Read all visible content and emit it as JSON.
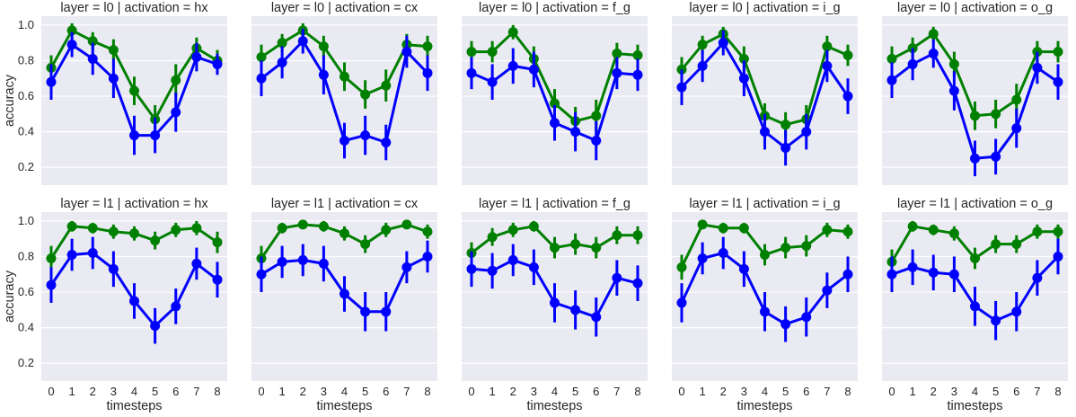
{
  "chart_data": {
    "type": "line",
    "layout": "facet-grid",
    "x_label": "timesteps",
    "y_label": "accuracy",
    "x": [
      0,
      1,
      2,
      3,
      4,
      5,
      6,
      7,
      8
    ],
    "ylim": [
      0.1,
      1.05
    ],
    "yticks": [
      0.2,
      0.4,
      0.6,
      0.8,
      1.0
    ],
    "ytick_labels": [
      "0.2",
      "0.4",
      "0.6",
      "0.8",
      "1.0"
    ],
    "grid": true,
    "colors": {
      "background": "#eaeaf2",
      "grid": "#ffffff",
      "green": "#008000",
      "blue": "#0000ff",
      "text": "#262626"
    },
    "panels": [
      {
        "title": "layer = l0 | activation = hx",
        "series": [
          {
            "color": "#008000",
            "values": [
              0.76,
              0.97,
              0.91,
              0.86,
              0.63,
              0.47,
              0.69,
              0.87,
              0.8
            ],
            "err": [
              0.07,
              0.04,
              0.05,
              0.06,
              0.08,
              0.08,
              0.09,
              0.06,
              0.06
            ]
          },
          {
            "color": "#0000ff",
            "values": [
              0.68,
              0.89,
              0.81,
              0.7,
              0.38,
              0.38,
              0.51,
              0.82,
              0.78
            ],
            "err": [
              0.1,
              0.07,
              0.09,
              0.11,
              0.11,
              0.1,
              0.11,
              0.08,
              0.06
            ]
          }
        ]
      },
      {
        "title": "layer = l0 | activation = cx",
        "series": [
          {
            "color": "#008000",
            "values": [
              0.82,
              0.9,
              0.97,
              0.88,
              0.71,
              0.61,
              0.66,
              0.89,
              0.88
            ],
            "err": [
              0.07,
              0.05,
              0.04,
              0.06,
              0.08,
              0.08,
              0.09,
              0.06,
              0.06
            ]
          },
          {
            "color": "#0000ff",
            "values": [
              0.7,
              0.79,
              0.91,
              0.72,
              0.35,
              0.38,
              0.34,
              0.85,
              0.73
            ],
            "err": [
              0.1,
              0.09,
              0.07,
              0.11,
              0.1,
              0.11,
              0.1,
              0.09,
              0.1
            ]
          }
        ]
      },
      {
        "title": "layer = l0 | activation = f_g",
        "series": [
          {
            "color": "#008000",
            "values": [
              0.85,
              0.85,
              0.96,
              0.81,
              0.56,
              0.46,
              0.49,
              0.84,
              0.83
            ],
            "err": [
              0.06,
              0.06,
              0.04,
              0.07,
              0.08,
              0.08,
              0.09,
              0.06,
              0.06
            ]
          },
          {
            "color": "#0000ff",
            "values": [
              0.73,
              0.68,
              0.77,
              0.75,
              0.45,
              0.4,
              0.35,
              0.73,
              0.72
            ],
            "err": [
              0.09,
              0.1,
              0.1,
              0.1,
              0.1,
              0.11,
              0.11,
              0.09,
              0.09
            ]
          }
        ]
      },
      {
        "title": "layer = l0 | activation = i_g",
        "series": [
          {
            "color": "#008000",
            "values": [
              0.75,
              0.89,
              0.95,
              0.81,
              0.49,
              0.44,
              0.47,
              0.88,
              0.83
            ],
            "err": [
              0.07,
              0.05,
              0.04,
              0.07,
              0.07,
              0.07,
              0.08,
              0.06,
              0.06
            ]
          },
          {
            "color": "#0000ff",
            "values": [
              0.65,
              0.77,
              0.9,
              0.7,
              0.4,
              0.31,
              0.4,
              0.77,
              0.6
            ],
            "err": [
              0.1,
              0.09,
              0.07,
              0.1,
              0.1,
              0.1,
              0.1,
              0.09,
              0.1
            ]
          }
        ]
      },
      {
        "title": "layer = l0 | activation = o_g",
        "series": [
          {
            "color": "#008000",
            "values": [
              0.81,
              0.87,
              0.95,
              0.78,
              0.49,
              0.5,
              0.58,
              0.85,
              0.85
            ],
            "err": [
              0.07,
              0.06,
              0.04,
              0.07,
              0.08,
              0.08,
              0.09,
              0.06,
              0.06
            ]
          },
          {
            "color": "#0000ff",
            "values": [
              0.69,
              0.78,
              0.84,
              0.63,
              0.25,
              0.26,
              0.42,
              0.76,
              0.68
            ],
            "err": [
              0.1,
              0.09,
              0.08,
              0.11,
              0.1,
              0.1,
              0.11,
              0.09,
              0.1
            ]
          }
        ]
      },
      {
        "title": "layer = l1 | activation = hx",
        "series": [
          {
            "color": "#008000",
            "values": [
              0.79,
              0.97,
              0.96,
              0.94,
              0.93,
              0.89,
              0.95,
              0.96,
              0.88
            ],
            "err": [
              0.07,
              0.03,
              0.03,
              0.04,
              0.04,
              0.05,
              0.04,
              0.04,
              0.06
            ]
          },
          {
            "color": "#0000ff",
            "values": [
              0.64,
              0.81,
              0.82,
              0.73,
              0.55,
              0.41,
              0.52,
              0.76,
              0.67
            ],
            "err": [
              0.1,
              0.09,
              0.09,
              0.1,
              0.1,
              0.1,
              0.1,
              0.09,
              0.1
            ]
          }
        ]
      },
      {
        "title": "layer = l1 | activation = cx",
        "series": [
          {
            "color": "#008000",
            "values": [
              0.79,
              0.96,
              0.98,
              0.97,
              0.93,
              0.87,
              0.95,
              0.98,
              0.94
            ],
            "err": [
              0.07,
              0.03,
              0.02,
              0.03,
              0.04,
              0.05,
              0.04,
              0.02,
              0.04
            ]
          },
          {
            "color": "#0000ff",
            "values": [
              0.7,
              0.77,
              0.78,
              0.76,
              0.59,
              0.49,
              0.49,
              0.74,
              0.8
            ],
            "err": [
              0.1,
              0.09,
              0.09,
              0.1,
              0.1,
              0.11,
              0.11,
              0.09,
              0.09
            ]
          }
        ]
      },
      {
        "title": "layer = l1 | activation = f_g",
        "series": [
          {
            "color": "#008000",
            "values": [
              0.82,
              0.91,
              0.95,
              0.97,
              0.85,
              0.87,
              0.85,
              0.92,
              0.92
            ],
            "err": [
              0.06,
              0.05,
              0.04,
              0.03,
              0.06,
              0.06,
              0.06,
              0.05,
              0.05
            ]
          },
          {
            "color": "#0000ff",
            "values": [
              0.73,
              0.72,
              0.78,
              0.74,
              0.54,
              0.5,
              0.46,
              0.68,
              0.65
            ],
            "err": [
              0.1,
              0.1,
              0.09,
              0.1,
              0.11,
              0.11,
              0.11,
              0.1,
              0.1
            ]
          }
        ]
      },
      {
        "title": "layer = l1 | activation = i_g",
        "series": [
          {
            "color": "#008000",
            "values": [
              0.74,
              0.98,
              0.96,
              0.96,
              0.81,
              0.85,
              0.86,
              0.95,
              0.94
            ],
            "err": [
              0.07,
              0.02,
              0.03,
              0.03,
              0.06,
              0.06,
              0.06,
              0.04,
              0.04
            ]
          },
          {
            "color": "#0000ff",
            "values": [
              0.54,
              0.79,
              0.82,
              0.73,
              0.49,
              0.42,
              0.46,
              0.61,
              0.7
            ],
            "err": [
              0.11,
              0.09,
              0.09,
              0.1,
              0.11,
              0.1,
              0.11,
              0.1,
              0.1
            ]
          }
        ]
      },
      {
        "title": "layer = l1 | activation = o_g",
        "series": [
          {
            "color": "#008000",
            "values": [
              0.77,
              0.97,
              0.95,
              0.93,
              0.79,
              0.87,
              0.87,
              0.94,
              0.94
            ],
            "err": [
              0.07,
              0.03,
              0.03,
              0.04,
              0.06,
              0.05,
              0.05,
              0.04,
              0.04
            ]
          },
          {
            "color": "#0000ff",
            "values": [
              0.7,
              0.74,
              0.71,
              0.7,
              0.52,
              0.44,
              0.49,
              0.68,
              0.8
            ],
            "err": [
              0.1,
              0.1,
              0.1,
              0.1,
              0.11,
              0.11,
              0.11,
              0.1,
              0.1
            ]
          }
        ]
      }
    ]
  }
}
